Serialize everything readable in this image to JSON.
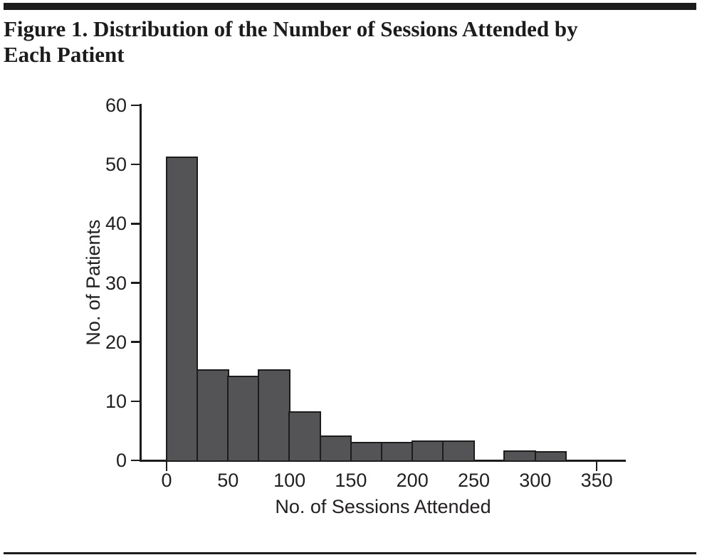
{
  "document": {
    "title_line1": "Figure 1. Distribution of the Number of Sessions Attended by",
    "title_line2": "Each Patient"
  },
  "chart_data": {
    "type": "bar",
    "subtype": "histogram",
    "title": "Figure 1. Distribution of the Number of Sessions Attended by Each Patient",
    "xlabel": "No. of Sessions Attended",
    "ylabel": "No. of Patients",
    "bin_width": 25,
    "bins": [
      {
        "start": 0,
        "end": 25,
        "count": 51.2
      },
      {
        "start": 25,
        "end": 50,
        "count": 15.2
      },
      {
        "start": 50,
        "end": 75,
        "count": 14.1
      },
      {
        "start": 75,
        "end": 100,
        "count": 15.2
      },
      {
        "start": 100,
        "end": 125,
        "count": 8.1
      },
      {
        "start": 125,
        "end": 150,
        "count": 4
      },
      {
        "start": 150,
        "end": 175,
        "count": 3
      },
      {
        "start": 175,
        "end": 200,
        "count": 3
      },
      {
        "start": 200,
        "end": 225,
        "count": 3.2
      },
      {
        "start": 225,
        "end": 250,
        "count": 3.2
      },
      {
        "start": 250,
        "end": 275,
        "count": 0
      },
      {
        "start": 275,
        "end": 300,
        "count": 1.5
      },
      {
        "start": 300,
        "end": 325,
        "count": 1.4
      }
    ],
    "xlim": [
      0,
      374
    ],
    "ylim": [
      0,
      60
    ],
    "xticks": [
      0,
      50,
      100,
      150,
      200,
      250,
      300,
      350
    ],
    "xtick_marks": [
      0,
      350
    ],
    "yticks": [
      0,
      10,
      20,
      30,
      40,
      50,
      60
    ],
    "grid": false,
    "legend": false,
    "colors": {
      "bar_fill": "#545456",
      "bar_stroke": "#1c1c1c",
      "axis": "#1c1c1c",
      "text": "#231f20"
    }
  }
}
